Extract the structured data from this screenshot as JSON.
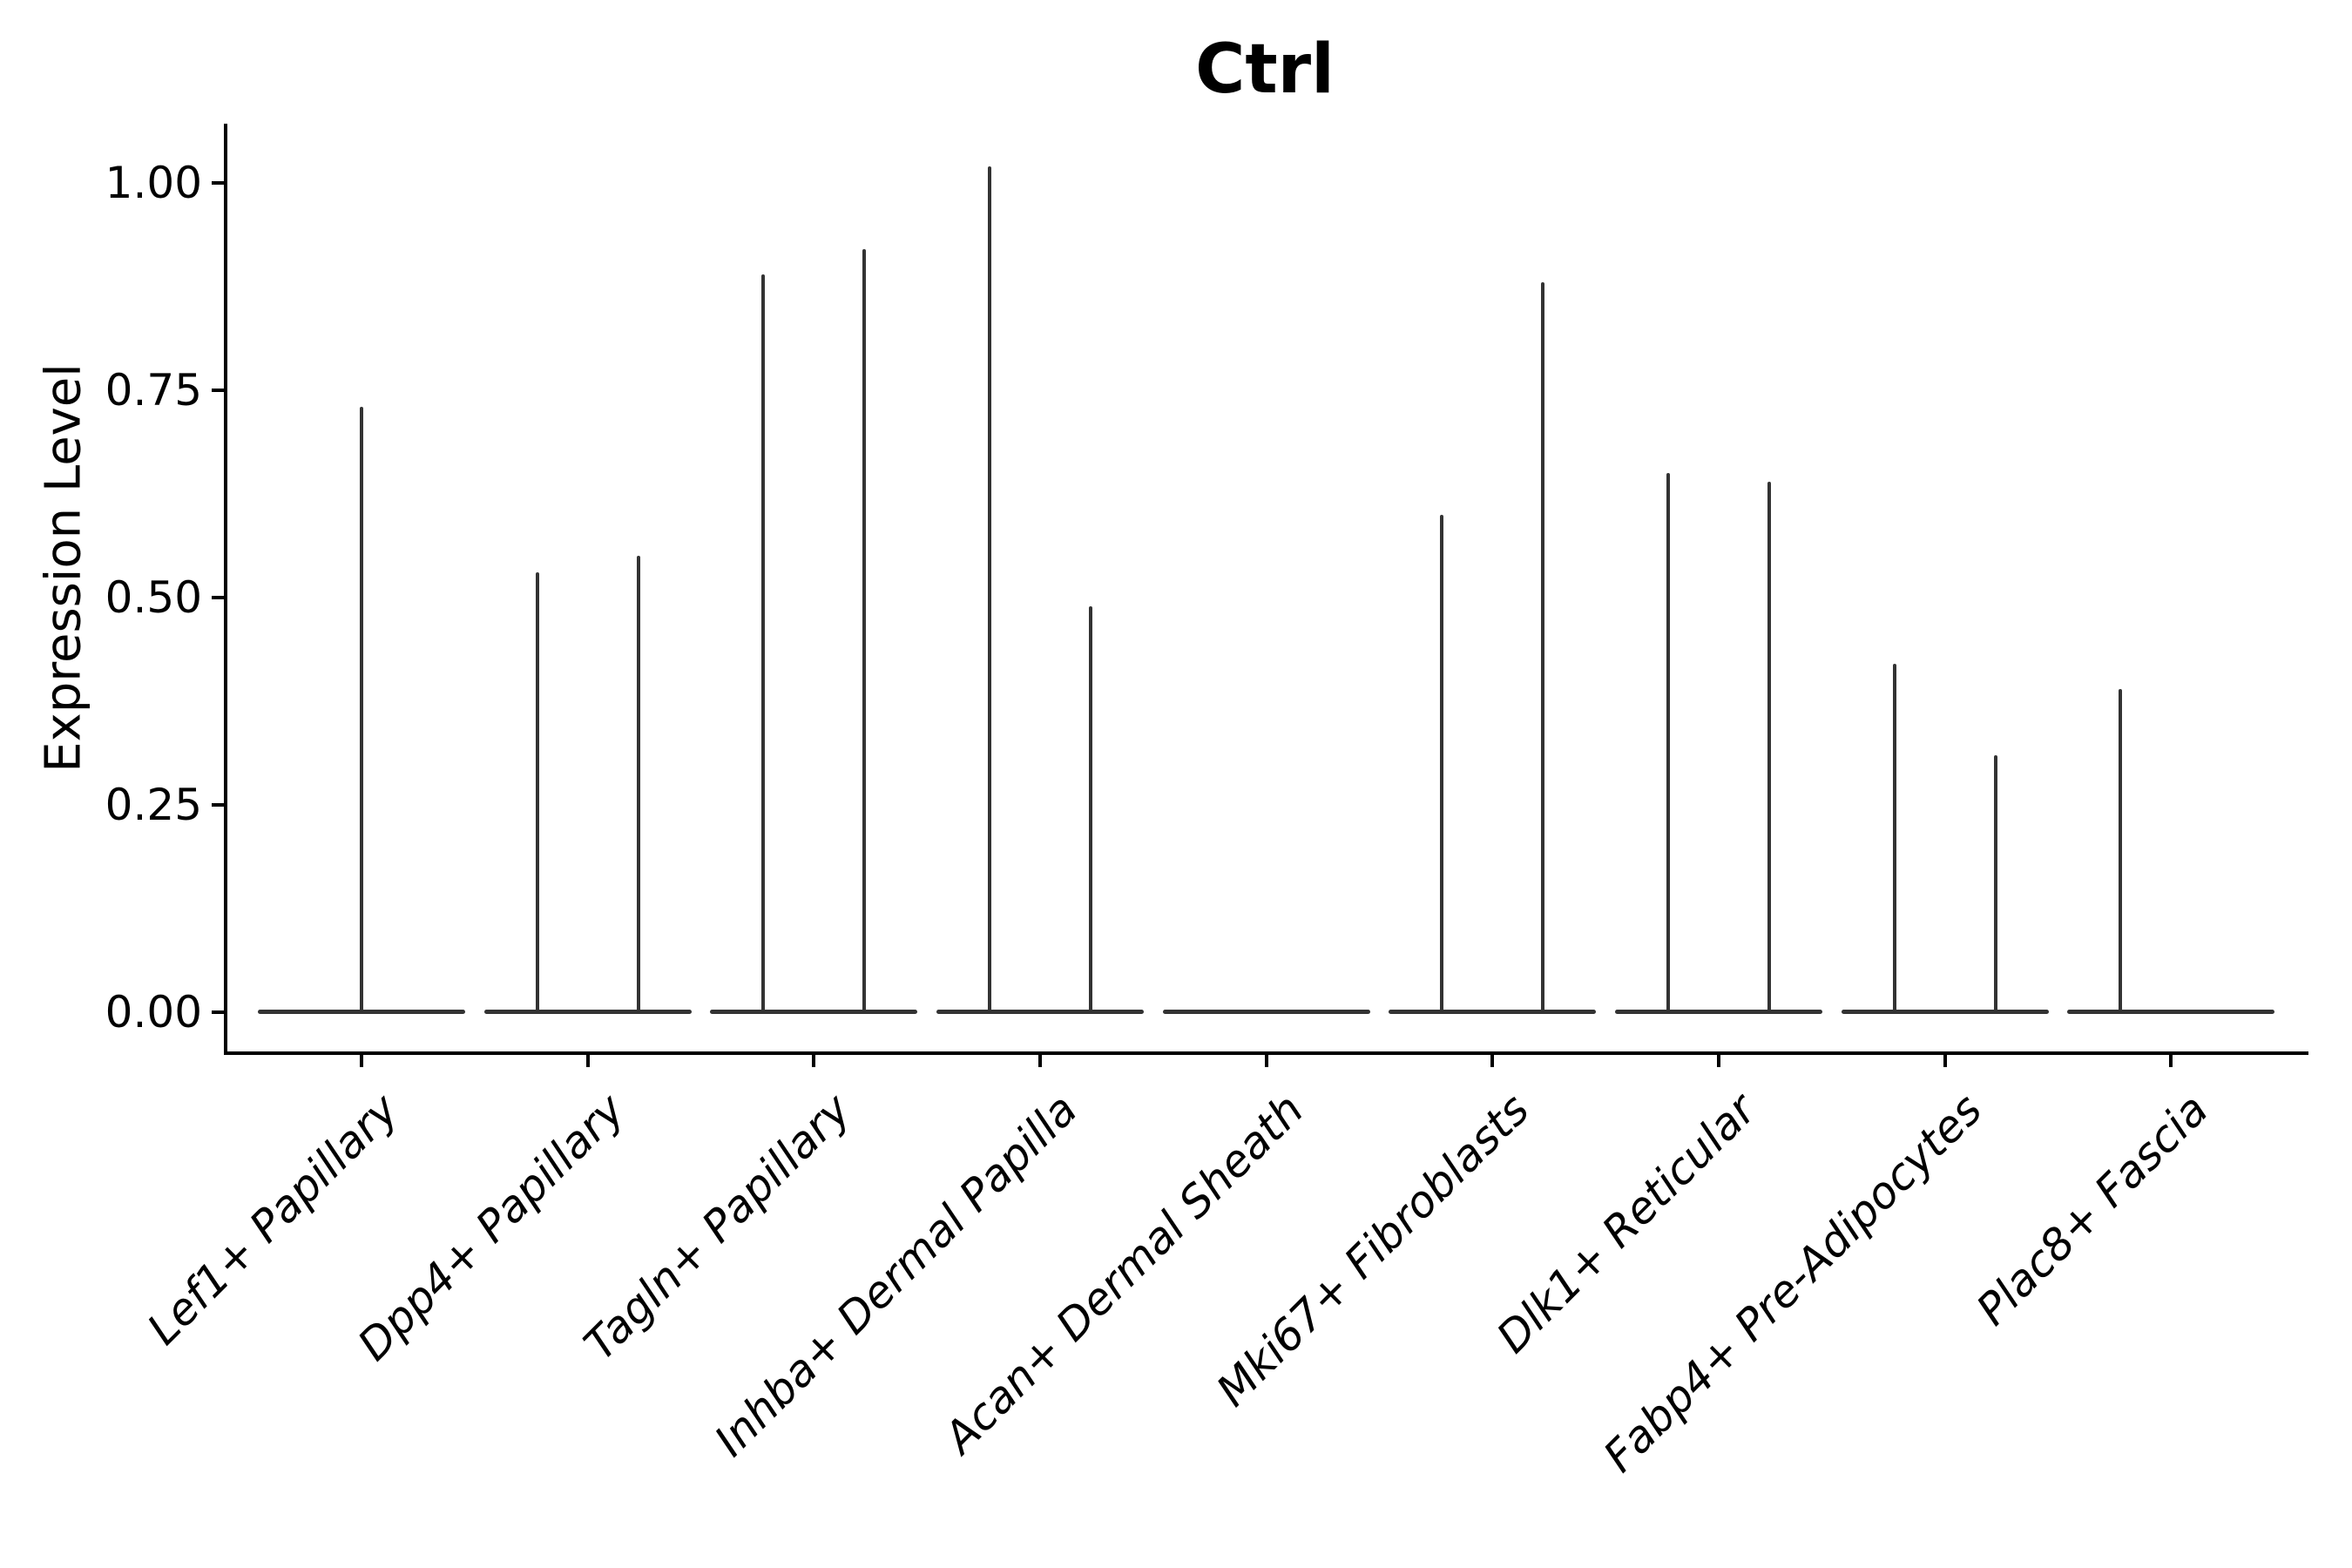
{
  "figure": {
    "background": "#ffffff",
    "text_color": "#000000",
    "axis_color": "#000000",
    "violin_color": "#333333"
  },
  "chart_data": {
    "type": "violin",
    "title": "Ctrl",
    "xlabel": "",
    "ylabel": "Expression Level",
    "ylim": [
      -0.05,
      1.07
    ],
    "grid": false,
    "legend": "none",
    "yticks": {
      "values": [
        0.0,
        0.25,
        0.5,
        0.75,
        1.0
      ],
      "labels": [
        "0.00",
        "0.25",
        "0.50",
        "0.75",
        "1.00"
      ]
    },
    "categories": [
      "Lef1+ Papillary",
      "Dpp4+ Papillary",
      "Tagln+ Papillary",
      "Inhba+ Dermal Papilla",
      "Acan+ Dermal Sheath",
      "Mki67+ Fibroblasts",
      "Dlk1+ Reticular",
      "Fabp4+ Pre-Adipocytes",
      "Plac8+ Fascia"
    ],
    "violins": [
      {
        "category": "Lef1+ Papillary",
        "baseline_value": 0,
        "spikes": [
          {
            "position": "center",
            "peak": 0.73
          }
        ]
      },
      {
        "category": "Dpp4+ Papillary",
        "baseline_value": 0,
        "spikes": [
          {
            "position": "left",
            "peak": 0.53
          },
          {
            "position": "right",
            "peak": 0.55
          }
        ]
      },
      {
        "category": "Tagln+ Papillary",
        "baseline_value": 0,
        "spikes": [
          {
            "position": "left",
            "peak": 0.89
          },
          {
            "position": "right",
            "peak": 0.92
          }
        ]
      },
      {
        "category": "Inhba+ Dermal Papilla",
        "baseline_value": 0,
        "spikes": [
          {
            "position": "left",
            "peak": 1.02
          },
          {
            "position": "right",
            "peak": 0.49
          }
        ]
      },
      {
        "category": "Acan+ Dermal Sheath",
        "baseline_value": 0,
        "spikes": []
      },
      {
        "category": "Mki67+ Fibroblasts",
        "baseline_value": 0,
        "spikes": [
          {
            "position": "left",
            "peak": 0.6
          },
          {
            "position": "right",
            "peak": 0.88
          }
        ]
      },
      {
        "category": "Dlk1+ Reticular",
        "baseline_value": 0,
        "spikes": [
          {
            "position": "left",
            "peak": 0.65
          },
          {
            "position": "right",
            "peak": 0.64
          }
        ]
      },
      {
        "category": "Fabp4+ Pre-Adipocytes",
        "baseline_value": 0,
        "spikes": [
          {
            "position": "left",
            "peak": 0.42
          },
          {
            "position": "right",
            "peak": 0.31
          }
        ]
      },
      {
        "category": "Plac8+ Fascia",
        "baseline_value": 0,
        "spikes": [
          {
            "position": "left",
            "peak": 0.39
          }
        ]
      }
    ]
  }
}
